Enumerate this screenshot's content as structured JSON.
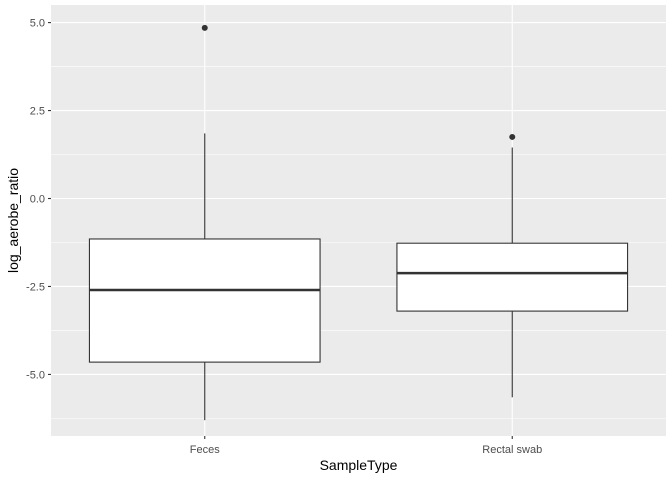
{
  "chart_data": {
    "type": "boxplot",
    "xlabel": "SampleType",
    "ylabel": "log_aerobe_ratio",
    "ylim": [
      -6.75,
      5.5
    ],
    "yticks": [
      5.0,
      2.5,
      0.0,
      -2.5,
      -5.0
    ],
    "ytick_labels": [
      "5.0",
      "2.5",
      "0.0",
      "-2.5",
      "-5.0"
    ],
    "categories": [
      "Feces",
      "Rectal swab"
    ],
    "boxes": [
      {
        "category": "Feces",
        "whisker_low": -6.3,
        "q1": -4.65,
        "median": -2.6,
        "q3": -1.15,
        "whisker_high": 1.85,
        "outliers": [
          4.85
        ]
      },
      {
        "category": "Rectal swab",
        "whisker_low": -5.65,
        "q1": -3.2,
        "median": -2.12,
        "q3": -1.27,
        "whisker_high": 1.45,
        "outliers": [
          1.75
        ]
      }
    ],
    "grid": true,
    "colors": {
      "panel": "#ebebeb",
      "grid_major": "#ffffff",
      "box_fill": "#ffffff",
      "box_line": "#333333"
    }
  }
}
